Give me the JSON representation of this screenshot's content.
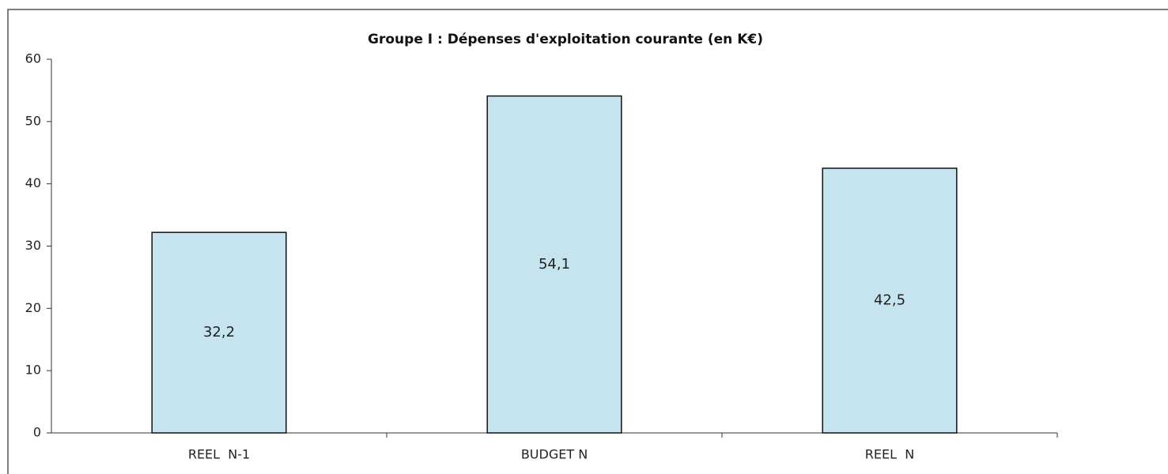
{
  "chart_data": {
    "type": "bar",
    "title": "Groupe I : Dépenses d'exploitation courante (en K€)",
    "categories": [
      "REEL  N-1",
      "BUDGET N",
      "REEL  N"
    ],
    "values": [
      32.2,
      54.1,
      42.5
    ],
    "value_labels": [
      "32,2",
      "54,1",
      "42,5"
    ],
    "color": "#c6e4ef",
    "ylim": [
      0,
      60
    ],
    "yticks": [
      0,
      10,
      20,
      30,
      40,
      50,
      60
    ],
    "grid": false
  }
}
